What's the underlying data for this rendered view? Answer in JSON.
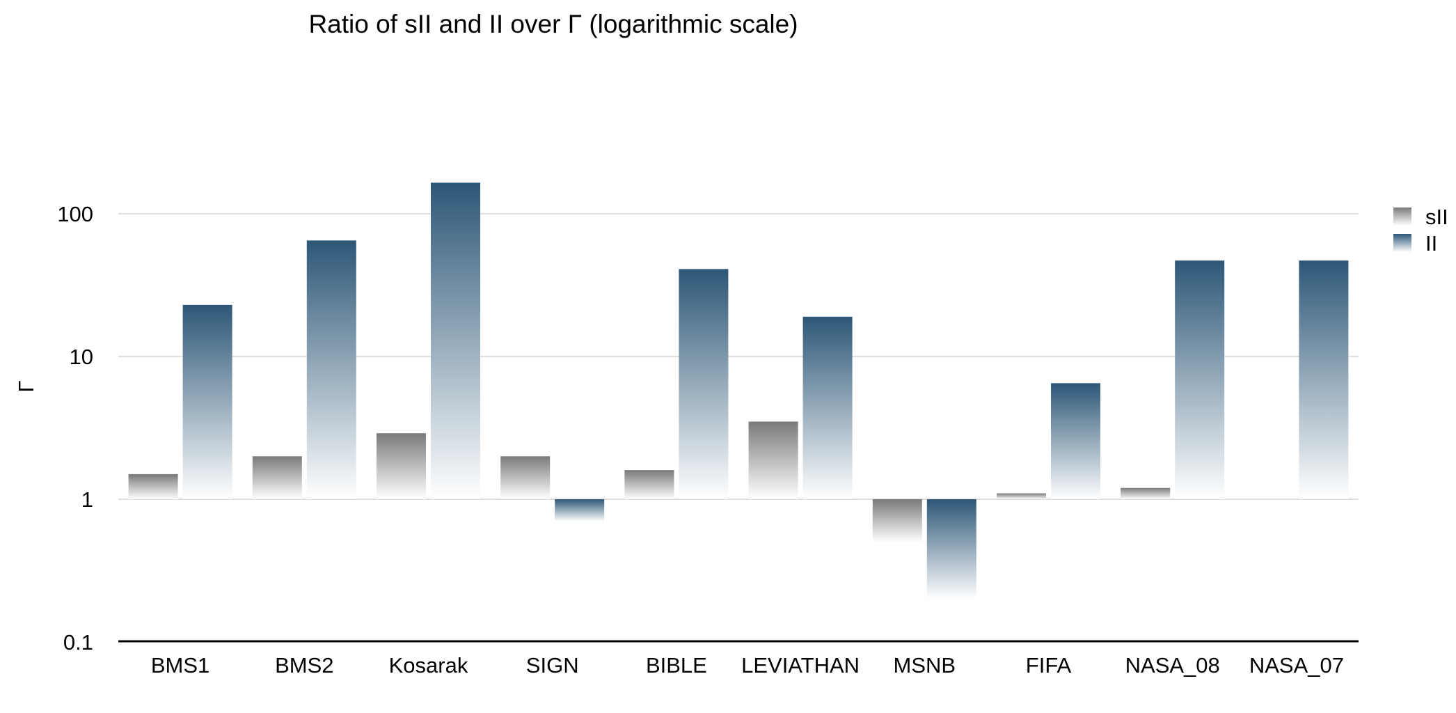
{
  "chart_data": {
    "type": "bar",
    "title": "Ratio of sII and II over Γ (logarithmic scale)",
    "xlabel": "",
    "ylabel": "Γ",
    "yscale": "log",
    "ylim": [
      0.1,
      250
    ],
    "yticks": [
      0.1,
      1,
      10,
      100
    ],
    "ytick_labels": [
      "0.1",
      "1",
      "10",
      "100"
    ],
    "baseline": 1,
    "grid": true,
    "legend_position": "right",
    "categories": [
      "BMS1",
      "BMS2",
      "Kosarak",
      "SIGN",
      "BIBLE",
      "LEVIATHAN",
      "MSNB",
      "FIFA",
      "NASA_08",
      "NASA_07"
    ],
    "series": [
      {
        "name": "sII",
        "color": "#7a7a7a",
        "values": [
          1.5,
          2.0,
          2.9,
          2.0,
          1.6,
          3.5,
          0.5,
          1.1,
          1.2,
          1.0
        ]
      },
      {
        "name": "II",
        "color": "#2d5777",
        "values": [
          23,
          65,
          165,
          0.7,
          41,
          19,
          0.2,
          6.5,
          47,
          47
        ]
      }
    ]
  }
}
